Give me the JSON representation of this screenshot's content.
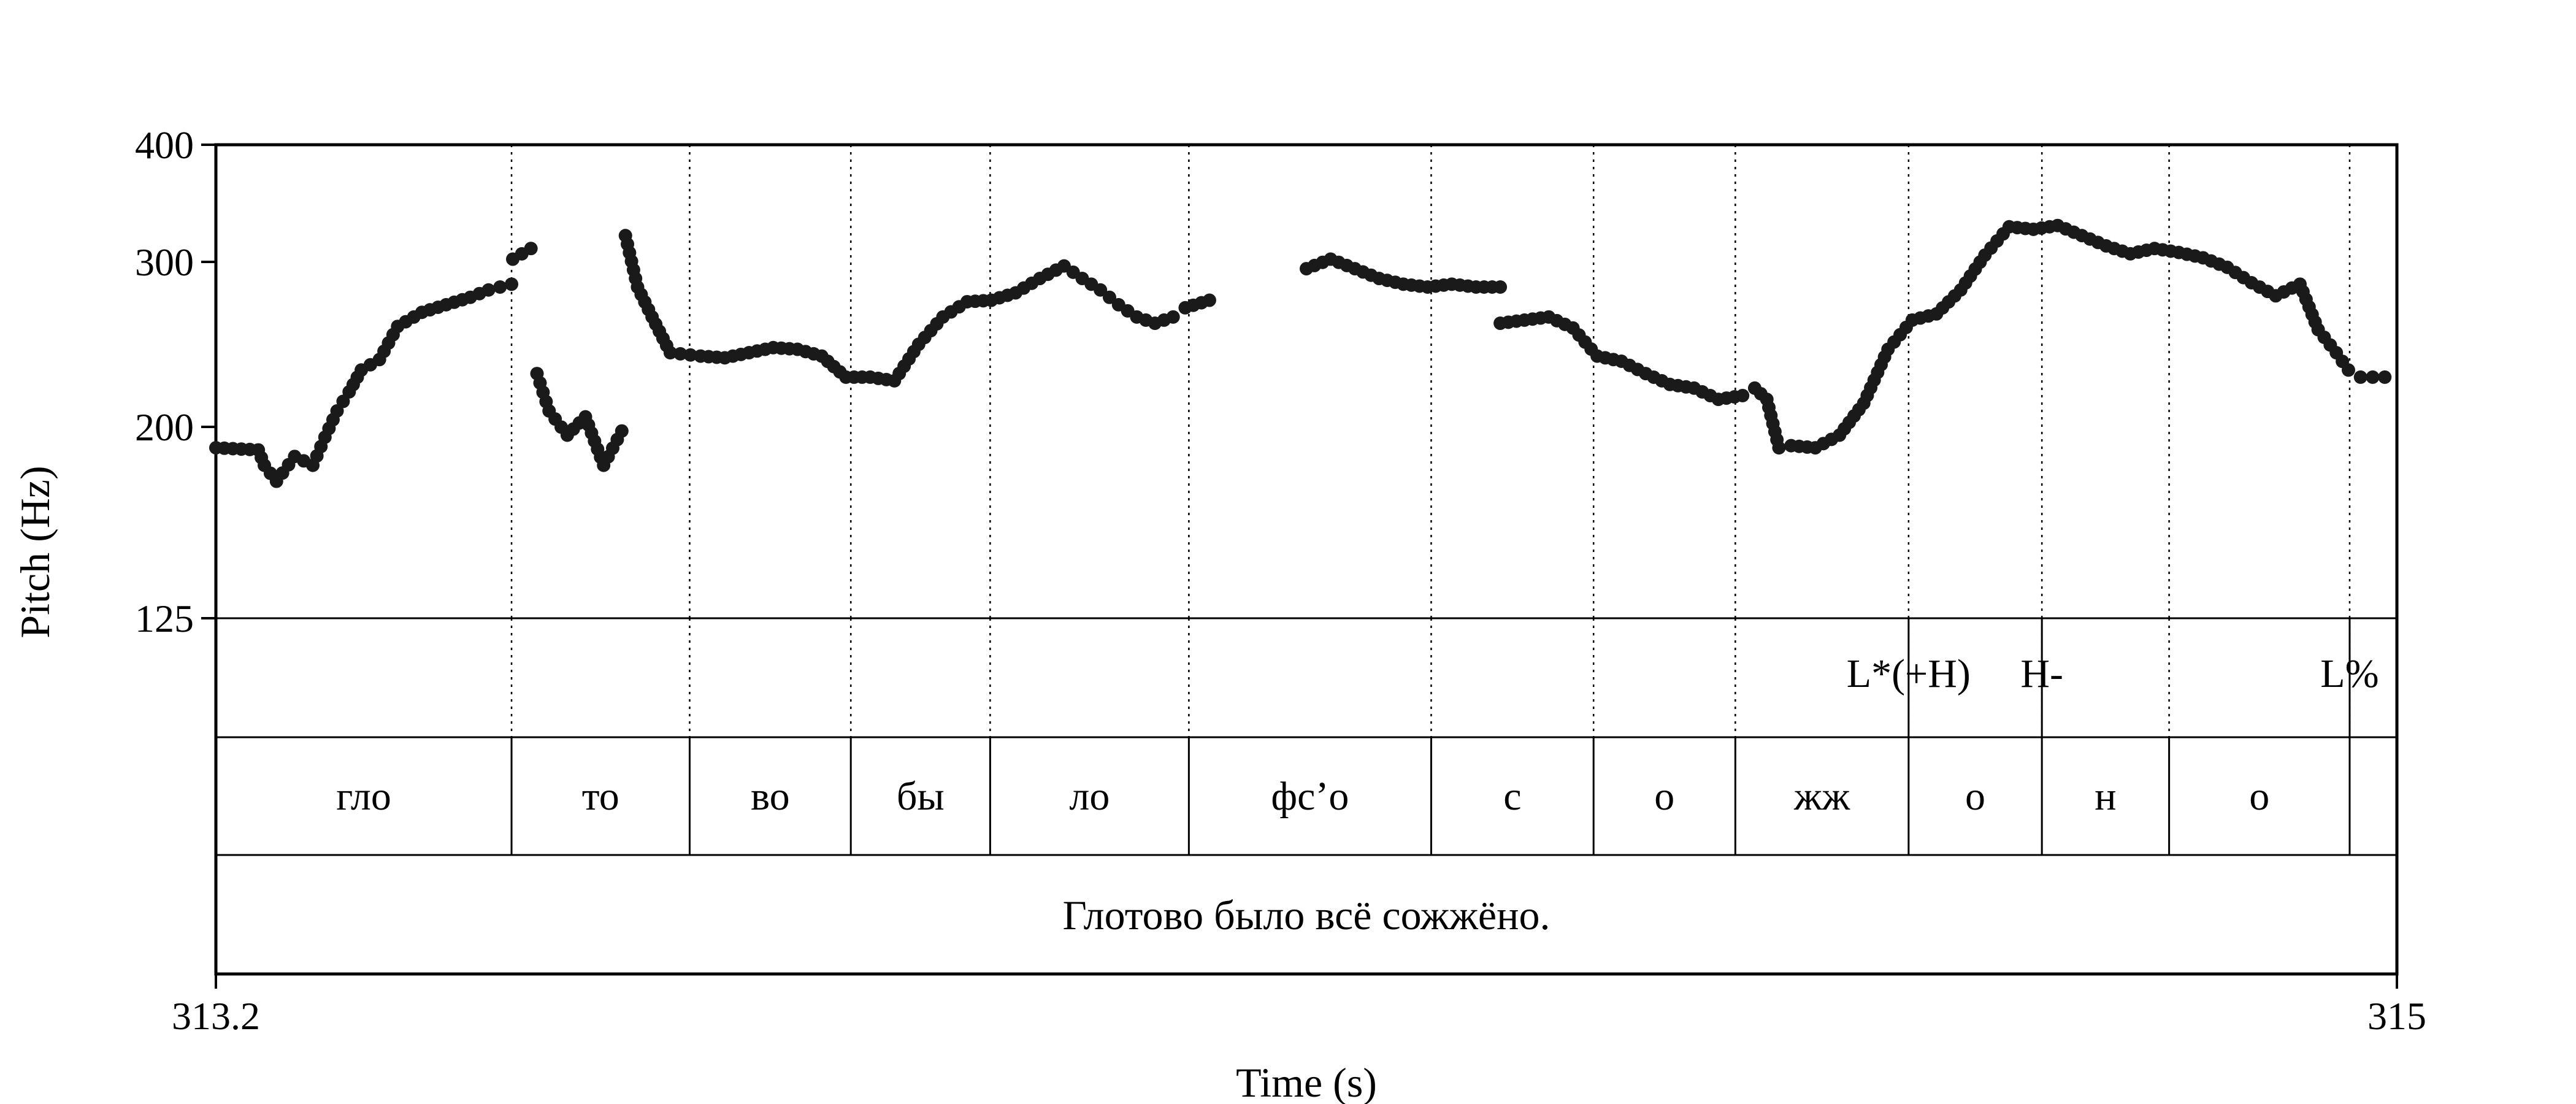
{
  "chart_data": {
    "type": "scatter",
    "xlabel": "Time (s)",
    "ylabel": "Pitch (Hz)",
    "xlim": [
      313.2,
      315
    ],
    "ylim": [
      125,
      400
    ],
    "x_ticks": [
      "313.2",
      "315"
    ],
    "y_ticks": [
      {
        "value": 125,
        "label": "125"
      },
      {
        "value": 200,
        "label": "200"
      },
      {
        "value": 300,
        "label": "300"
      },
      {
        "value": 400,
        "label": "400"
      }
    ],
    "grid": false,
    "boundaries": [
      313.444,
      313.591,
      313.724,
      313.839,
      314.003,
      314.203,
      314.337,
      314.454,
      314.597,
      314.707,
      314.812,
      314.961
    ],
    "tones": [
      {
        "time": 314.597,
        "label": "L*(+H)"
      },
      {
        "time": 314.707,
        "label": "H-"
      },
      {
        "time": 314.961,
        "label": "L%"
      }
    ],
    "syllables": [
      {
        "start": 313.2,
        "end": 313.444,
        "label": "гло"
      },
      {
        "start": 313.444,
        "end": 313.591,
        "label": "то"
      },
      {
        "start": 313.591,
        "end": 313.724,
        "label": "во"
      },
      {
        "start": 313.724,
        "end": 313.839,
        "label": "бы"
      },
      {
        "start": 313.839,
        "end": 314.003,
        "label": "ло"
      },
      {
        "start": 314.003,
        "end": 314.203,
        "label": "фс’о"
      },
      {
        "start": 314.203,
        "end": 314.337,
        "label": "с"
      },
      {
        "start": 314.337,
        "end": 314.454,
        "label": "о"
      },
      {
        "start": 314.454,
        "end": 314.597,
        "label": "жж"
      },
      {
        "start": 314.597,
        "end": 314.707,
        "label": "о"
      },
      {
        "start": 314.707,
        "end": 314.812,
        "label": "н"
      },
      {
        "start": 314.812,
        "end": 314.961,
        "label": "о"
      },
      {
        "start": 314.961,
        "end": 315.0,
        "label": ""
      }
    ],
    "sentence": "Глотово было всё сожжёно.",
    "pitch_contour": [
      {
        "t": [
          313.2,
          313.235,
          313.24,
          313.25,
          313.265,
          313.28,
          313.29,
          313.3,
          313.31,
          313.32,
          313.335,
          313.35,
          313.37,
          313.39,
          313.41,
          313.425,
          313.444
        ],
        "hz": [
          190,
          189,
          182,
          175,
          186,
          182,
          195,
          208,
          218,
          230,
          236,
          256,
          265,
          270,
          275,
          280,
          284
        ]
      },
      {
        "t": [
          313.445,
          313.46
        ],
        "hz": [
          302,
          310
        ]
      },
      {
        "t": [
          313.465,
          313.475,
          313.49,
          313.505,
          313.52,
          313.535
        ],
        "hz": [
          228,
          208,
          196,
          205,
          182,
          198
        ]
      },
      {
        "t": [
          313.538,
          313.548,
          313.56,
          313.575,
          313.6,
          313.62,
          313.64,
          313.66,
          313.68,
          313.7,
          313.72,
          313.74,
          313.76,
          313.78,
          313.8,
          313.82,
          313.84,
          313.86,
          313.88,
          313.9,
          313.915,
          313.93,
          313.945,
          313.96,
          313.975,
          313.99,
          314.0,
          314.02
        ],
        "hz": [
          320,
          282,
          262,
          240,
          238,
          237,
          240,
          243,
          242,
          238,
          226,
          226,
          224,
          245,
          262,
          272,
          273,
          278,
          288,
          297,
          288,
          280,
          270,
          262,
          258,
          262,
          268,
          273
        ]
      },
      {
        "t": [
          314.1,
          314.12,
          314.14,
          314.16,
          314.18,
          314.2,
          314.22,
          314.24,
          314.26
        ],
        "hz": [
          295,
          302,
          295,
          288,
          284,
          282,
          284,
          282,
          282
        ]
      },
      {
        "t": [
          314.26,
          314.28,
          314.3,
          314.32,
          314.34,
          314.36,
          314.38,
          314.4,
          314.42,
          314.44,
          314.46,
          314.47,
          314.48,
          314.49,
          314.5,
          314.52,
          314.54,
          314.56,
          314.58,
          314.6,
          314.62,
          314.64,
          314.66,
          314.68,
          314.7,
          314.72,
          314.74,
          314.76,
          314.78,
          314.8,
          314.82,
          314.84,
          314.86,
          314.88,
          314.9,
          314.92,
          314.935,
          314.95,
          314.96,
          314.97,
          314.98,
          314.99
        ],
        "hz": [
          258,
          260,
          262,
          255,
          238,
          235,
          228,
          222,
          220,
          214,
          216,
          220,
          214,
          190,
          191,
          190,
          196,
          212,
          242,
          260,
          264,
          280,
          305,
          327,
          325,
          328,
          320,
          312,
          306,
          310,
          307,
          303,
          296,
          285,
          276,
          284,
          254,
          240,
          230,
          226,
          226,
          226
        ]
      }
    ]
  }
}
